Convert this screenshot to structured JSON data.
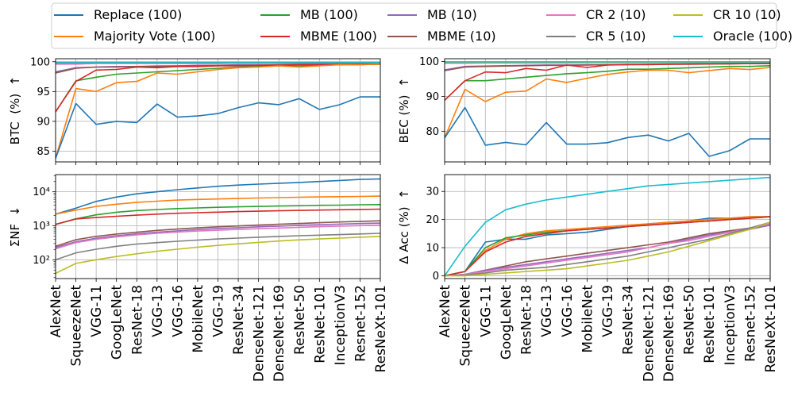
{
  "chart_data": {
    "type": "line",
    "x_categories": [
      "AlexNet",
      "SqueezeNet",
      "VGG-11",
      "GoogLeNet",
      "ResNet-18",
      "VGG-13",
      "VGG-16",
      "MobileNet",
      "VGG-19",
      "ResNet-34",
      "DenseNet-121",
      "DenseNet-169",
      "ResNet-50",
      "ResNet-101",
      "InceptionV3",
      "Resnet-152",
      "ResNeXt-101"
    ],
    "legend": {
      "placement": "top",
      "columns": 5,
      "entries": [
        {
          "name": "Replace (100)",
          "color": "#1f77b4"
        },
        {
          "name": "Majority Vote (100)",
          "color": "#ff7f0e"
        },
        {
          "name": "MB (100)",
          "color": "#2ca02c"
        },
        {
          "name": "MBME (100)",
          "color": "#d62728"
        },
        {
          "name": "MB (10)",
          "color": "#9467bd"
        },
        {
          "name": "MBME (10)",
          "color": "#8c564b"
        },
        {
          "name": "CR 2 (10)",
          "color": "#e377c2"
        },
        {
          "name": "CR 5 (10)",
          "color": "#7f7f7f"
        },
        {
          "name": "CR 10 (10)",
          "color": "#bcbd22"
        },
        {
          "name": "Oracle (100)",
          "color": "#17becf"
        }
      ]
    },
    "grid": true,
    "panels": [
      {
        "id": "btc",
        "ylabel": "BTC  (%)  ↑",
        "yscale": "linear",
        "ylim": [
          83.2,
          100.5
        ],
        "yticks": [
          85,
          90,
          95,
          100
        ],
        "series": [
          {
            "name": "MB (10)",
            "values": [
              98.3,
              99.0,
              99.1,
              99.2,
              99.2,
              99.3,
              99.3,
              99.4,
              99.4,
              99.5,
              99.5,
              99.5,
              99.6,
              99.6,
              99.6,
              99.6,
              99.7
            ]
          },
          {
            "name": "MBME (10)",
            "values": [
              98.1,
              98.9,
              99.1,
              99.1,
              99.2,
              99.2,
              99.3,
              99.3,
              99.4,
              99.4,
              99.4,
              99.5,
              99.5,
              99.5,
              99.6,
              99.6,
              99.6
            ]
          },
          {
            "name": "CR 2 (10)",
            "values": [
              99.6,
              99.6,
              99.7,
              99.7,
              99.7,
              99.7,
              99.7,
              99.7,
              99.7,
              99.8,
              99.8,
              99.8,
              99.8,
              99.8,
              99.8,
              99.8,
              99.8
            ]
          },
          {
            "name": "CR 5 (10)",
            "values": [
              99.8,
              99.8,
              99.8,
              99.8,
              99.8,
              99.8,
              99.8,
              99.8,
              99.8,
              99.8,
              99.8,
              99.8,
              99.8,
              99.8,
              99.8,
              99.8,
              99.8
            ]
          },
          {
            "name": "CR 10 (10)",
            "values": [
              99.9,
              99.9,
              99.9,
              99.9,
              99.9,
              99.9,
              99.9,
              99.9,
              99.9,
              99.9,
              99.9,
              99.9,
              99.9,
              99.9,
              99.9,
              99.9,
              99.9
            ]
          },
          {
            "name": "Oracle (100)",
            "values": [
              99.9,
              99.9,
              99.9,
              99.9,
              99.9,
              99.9,
              99.9,
              99.9,
              99.9,
              99.9,
              99.9,
              99.9,
              99.9,
              99.9,
              99.9,
              99.9,
              99.9
            ]
          },
          {
            "name": "MB (100)",
            "values": [
              91.6,
              96.8,
              97.4,
              97.9,
              98.1,
              98.3,
              98.5,
              98.7,
              98.9,
              99.1,
              99.2,
              99.3,
              99.3,
              99.4,
              99.5,
              99.5,
              99.6
            ]
          },
          {
            "name": "MBME (100)",
            "values": [
              91.6,
              96.7,
              98.6,
              98.7,
              99.1,
              99.0,
              99.2,
              99.2,
              99.3,
              99.3,
              99.4,
              99.4,
              99.5,
              99.5,
              99.5,
              99.6,
              99.6
            ]
          },
          {
            "name": "Majority Vote (100)",
            "values": [
              83.8,
              95.5,
              95.0,
              96.5,
              96.7,
              98.1,
              97.9,
              98.3,
              98.7,
              99.0,
              99.1,
              99.3,
              99.1,
              99.3,
              99.5,
              99.5,
              99.6
            ]
          },
          {
            "name": "Replace (100)",
            "values": [
              83.8,
              93.0,
              89.5,
              90.0,
              89.8,
              92.9,
              90.7,
              90.9,
              91.3,
              92.3,
              93.1,
              92.8,
              93.8,
              92.0,
              92.8,
              94.1,
              94.1
            ]
          }
        ]
      },
      {
        "id": "bec",
        "ylabel": "BEC (%)  ↑",
        "yscale": "linear",
        "ylim": [
          71.2,
          100.8
        ],
        "yticks": [
          80,
          90,
          100
        ],
        "series": [
          {
            "name": "MB (10)",
            "values": [
              97.6,
              98.6,
              98.7,
              98.8,
              98.9,
              99.0,
              99.0,
              99.1,
              99.1,
              99.2,
              99.2,
              99.3,
              99.3,
              99.4,
              99.4,
              99.4,
              99.5
            ]
          },
          {
            "name": "MBME (10)",
            "values": [
              97.4,
              98.4,
              98.6,
              98.7,
              98.8,
              98.9,
              98.9,
              99.0,
              99.1,
              99.1,
              99.2,
              99.2,
              99.2,
              99.3,
              99.3,
              99.4,
              99.4
            ]
          },
          {
            "name": "CR 2 (10)",
            "values": [
              99.5,
              99.5,
              99.6,
              99.6,
              99.6,
              99.6,
              99.6,
              99.7,
              99.7,
              99.7,
              99.7,
              99.7,
              99.7,
              99.7,
              99.7,
              99.7,
              99.8
            ]
          },
          {
            "name": "CR 5 (10)",
            "values": [
              99.7,
              99.7,
              99.7,
              99.7,
              99.7,
              99.7,
              99.7,
              99.7,
              99.8,
              99.8,
              99.8,
              99.8,
              99.8,
              99.8,
              99.8,
              99.8,
              99.8
            ]
          },
          {
            "name": "CR 10 (10)",
            "values": [
              99.8,
              99.8,
              99.8,
              99.8,
              99.8,
              99.8,
              99.8,
              99.8,
              99.8,
              99.8,
              99.8,
              99.8,
              99.8,
              99.8,
              99.8,
              99.8,
              99.8
            ]
          },
          {
            "name": "Oracle (100)",
            "values": [
              99.9,
              99.9,
              99.9,
              99.9,
              99.9,
              99.9,
              99.9,
              99.9,
              99.9,
              99.9,
              99.9,
              99.9,
              99.9,
              99.9,
              99.9,
              99.9,
              99.9
            ]
          },
          {
            "name": "MB (100)",
            "values": [
              88.9,
              94.5,
              94.5,
              95.0,
              95.5,
              96.0,
              96.5,
              96.8,
              97.2,
              97.8,
              97.8,
              98.0,
              98.2,
              98.4,
              98.6,
              98.6,
              98.8
            ]
          },
          {
            "name": "MBME (100)",
            "values": [
              88.9,
              94.5,
              97.0,
              96.8,
              98.0,
              97.5,
              99.0,
              98.3,
              99.0,
              99.1,
              99.1,
              99.2,
              99.3,
              99.3,
              99.4,
              99.4,
              99.5
            ]
          },
          {
            "name": "Majority Vote (100)",
            "values": [
              78.1,
              92.0,
              88.5,
              91.2,
              91.5,
              95.0,
              94.0,
              95.2,
              96.3,
              97.0,
              97.5,
              97.5,
              96.8,
              97.4,
              98.0,
              97.7,
              98.3
            ]
          },
          {
            "name": "Replace (100)",
            "values": [
              78.1,
              86.8,
              76.0,
              76.8,
              76.1,
              82.5,
              76.3,
              76.3,
              76.7,
              78.2,
              78.9,
              77.2,
              79.4,
              72.8,
              74.4,
              77.8,
              77.8
            ]
          }
        ]
      },
      {
        "id": "nf",
        "ylabel": "ΣNF  ↓",
        "yscale": "log",
        "ylim": [
          28,
          32000
        ],
        "yticks": [
          100,
          1000,
          10000
        ],
        "ytick_labels": [
          "10²",
          "10³",
          "10⁴"
        ],
        "series": [
          {
            "name": "Replace (100)",
            "values": [
              2200,
              3300,
              5200,
              7000,
              8700,
              10000,
              11500,
              13000,
              14500,
              15700,
              16800,
              17800,
              18800,
              20000,
              21500,
              23000,
              24000
            ]
          },
          {
            "name": "Majority Vote (100)",
            "values": [
              2200,
              2900,
              3700,
              4300,
              4900,
              5300,
              5700,
              5950,
              6150,
              6350,
              6550,
              6750,
              6900,
              7050,
              7200,
              7300,
              7450
            ]
          },
          {
            "name": "MB (100)",
            "values": [
              1100,
              1600,
              2100,
              2500,
              2800,
              3000,
              3200,
              3350,
              3500,
              3600,
              3700,
              3800,
              3900,
              4000,
              4050,
              4150,
              4200
            ]
          },
          {
            "name": "MBME (100)",
            "values": [
              1100,
              1580,
              1750,
              1900,
              2050,
              2200,
              2330,
              2430,
              2520,
              2610,
              2690,
              2760,
              2830,
              2900,
              2960,
              3020,
              3080
            ]
          },
          {
            "name": "MBME (10)",
            "values": [
              250,
              390,
              490,
              570,
              650,
              730,
              800,
              870,
              930,
              990,
              1050,
              1110,
              1170,
              1230,
              1290,
              1350,
              1400
            ]
          },
          {
            "name": "MB (10)",
            "values": [
              230,
              340,
              430,
              510,
              580,
              650,
              710,
              770,
              830,
              880,
              930,
              980,
              1030,
              1080,
              1120,
              1160,
              1200
            ]
          },
          {
            "name": "CR 2 (10)",
            "values": [
              210,
              320,
              400,
              470,
              540,
              600,
              650,
              700,
              740,
              780,
              820,
              860,
              900,
              940,
              980,
              1010,
              1050
            ]
          },
          {
            "name": "CR 5 (10)",
            "values": [
              100,
              160,
              205,
              250,
              290,
              320,
              350,
              380,
              410,
              435,
              460,
              485,
              510,
              530,
              550,
              575,
              600
            ]
          },
          {
            "name": "CR 10 (10)",
            "values": [
              40,
              78,
              100,
              125,
              150,
              178,
              205,
              235,
              265,
              295,
              325,
              355,
              385,
              410,
              435,
              460,
              490
            ]
          }
        ]
      },
      {
        "id": "acc",
        "ylabel": "Δ Acc (%)  ↑",
        "yscale": "linear",
        "ylim": [
          -1,
          36
        ],
        "yticks": [
          0,
          10,
          20,
          30
        ],
        "series": [
          {
            "name": "Oracle (100)",
            "values": [
              0,
              10.5,
              19,
              23.5,
              25.5,
              27,
              28,
              29,
              30,
              31,
              32,
              32.5,
              33,
              33.5,
              34,
              34.5,
              35
            ]
          },
          {
            "name": "Replace (100)",
            "values": [
              0,
              1.5,
              12,
              13,
              13,
              14.5,
              15,
              15.5,
              16.5,
              17.5,
              18.5,
              19,
              19.5,
              20.5,
              20.5,
              21,
              21
            ]
          },
          {
            "name": "Majority Vote (100)",
            "values": [
              0,
              1.5,
              9,
              13,
              15,
              16,
              16.5,
              17,
              17.5,
              18,
              18.5,
              19,
              19.5,
              20,
              20.5,
              21,
              21
            ]
          },
          {
            "name": "MB (100)",
            "values": [
              0,
              1.5,
              10,
              13.5,
              14.5,
              15.5,
              16,
              16.5,
              17,
              17.5,
              18,
              18.5,
              19,
              19.5,
              20,
              20.5,
              21
            ]
          },
          {
            "name": "MBME (100)",
            "values": [
              0,
              1.5,
              8.5,
              12,
              14,
              15,
              16,
              16.5,
              17,
              17.5,
              18,
              18.5,
              19,
              19.5,
              20,
              20.5,
              21
            ]
          },
          {
            "name": "MBME (10)",
            "values": [
              0,
              0.5,
              2,
              3.5,
              5,
              6,
              7,
              8,
              9,
              10,
              11,
              12,
              13.5,
              15,
              16,
              17,
              18
            ]
          },
          {
            "name": "MB (10)",
            "values": [
              0,
              0.5,
              2,
              3,
              4,
              5,
              6,
              7,
              8,
              9,
              10,
              11.5,
              13,
              14.5,
              15.5,
              16.5,
              18
            ]
          },
          {
            "name": "CR 2 (10)",
            "values": [
              0,
              0.5,
              1.5,
              2.5,
              3.5,
              4.5,
              5.5,
              6.5,
              7.5,
              8.5,
              10,
              11.5,
              12.5,
              14,
              15.5,
              17,
              18.5
            ]
          },
          {
            "name": "CR 5 (10)",
            "values": [
              0,
              0.3,
              1,
              2,
              2.5,
              3,
              4,
              5,
              6,
              7,
              8.5,
              10,
              11.5,
              13,
              15,
              17,
              19
            ]
          },
          {
            "name": "CR 10 (10)",
            "values": [
              0,
              0,
              0.5,
              1,
              1.5,
              2,
              2.5,
              3.5,
              4.5,
              5.5,
              7,
              8.5,
              10.5,
              12.5,
              14.5,
              16.5,
              19
            ]
          }
        ]
      }
    ]
  }
}
